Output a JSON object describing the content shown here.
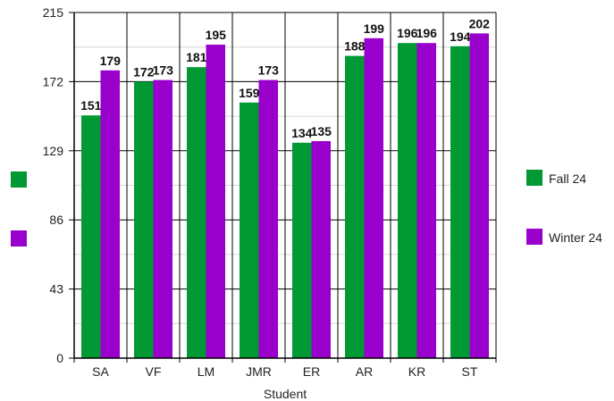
{
  "chart_data": {
    "type": "bar",
    "title": "",
    "xlabel": "Student",
    "ylabel": "",
    "categories": [
      "SA",
      "VF",
      "LM",
      "JMR",
      "ER",
      "AR",
      "KR",
      "ST"
    ],
    "series": [
      {
        "name": "Fall 24",
        "color": "#009933",
        "values": [
          151,
          172,
          181,
          159,
          134,
          188,
          196,
          194
        ]
      },
      {
        "name": "Winter 24",
        "color": "#9900cc",
        "values": [
          179,
          173,
          195,
          173,
          135,
          199,
          196,
          202
        ]
      }
    ],
    "ylim": [
      0,
      215
    ],
    "yticks": [
      0,
      43,
      86,
      129,
      172,
      215
    ],
    "grid": true,
    "legend_position": "right",
    "data_labels": true
  }
}
